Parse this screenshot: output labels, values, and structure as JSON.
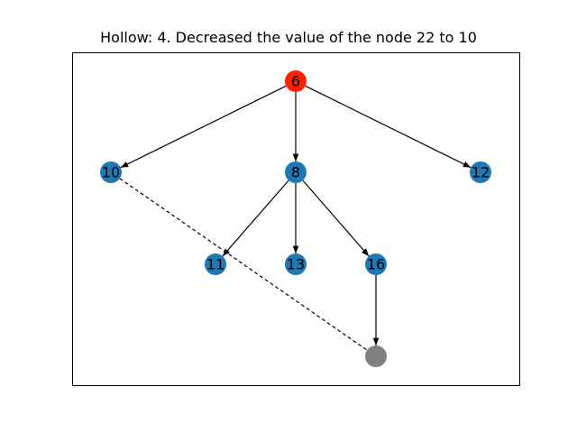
{
  "title": "Hollow: 4. Decreased the value of the node 22 to 10",
  "colors": {
    "root": "#ff2200",
    "normal": "#1f77b4",
    "hollow": "#808080",
    "edge": "#000000"
  },
  "nodes": [
    {
      "id": "n6",
      "label": "6",
      "kind": "root"
    },
    {
      "id": "n10",
      "label": "10",
      "kind": "normal"
    },
    {
      "id": "n8",
      "label": "8",
      "kind": "normal"
    },
    {
      "id": "n12",
      "label": "12",
      "kind": "normal"
    },
    {
      "id": "n11",
      "label": "11",
      "kind": "normal"
    },
    {
      "id": "n13",
      "label": "13",
      "kind": "normal"
    },
    {
      "id": "n16",
      "label": "16",
      "kind": "normal"
    },
    {
      "id": "hollow",
      "label": "",
      "kind": "hollow"
    }
  ],
  "edges": [
    {
      "from": "n6",
      "to": "n10",
      "style": "solid",
      "directed": true
    },
    {
      "from": "n6",
      "to": "n8",
      "style": "solid",
      "directed": true
    },
    {
      "from": "n6",
      "to": "n12",
      "style": "solid",
      "directed": true
    },
    {
      "from": "n8",
      "to": "n11",
      "style": "solid",
      "directed": true
    },
    {
      "from": "n8",
      "to": "n13",
      "style": "solid",
      "directed": true
    },
    {
      "from": "n8",
      "to": "n16",
      "style": "solid",
      "directed": true
    },
    {
      "from": "n16",
      "to": "hollow",
      "style": "solid",
      "directed": true
    },
    {
      "from": "n10",
      "to": "hollow",
      "style": "dashed",
      "directed": false
    }
  ]
}
